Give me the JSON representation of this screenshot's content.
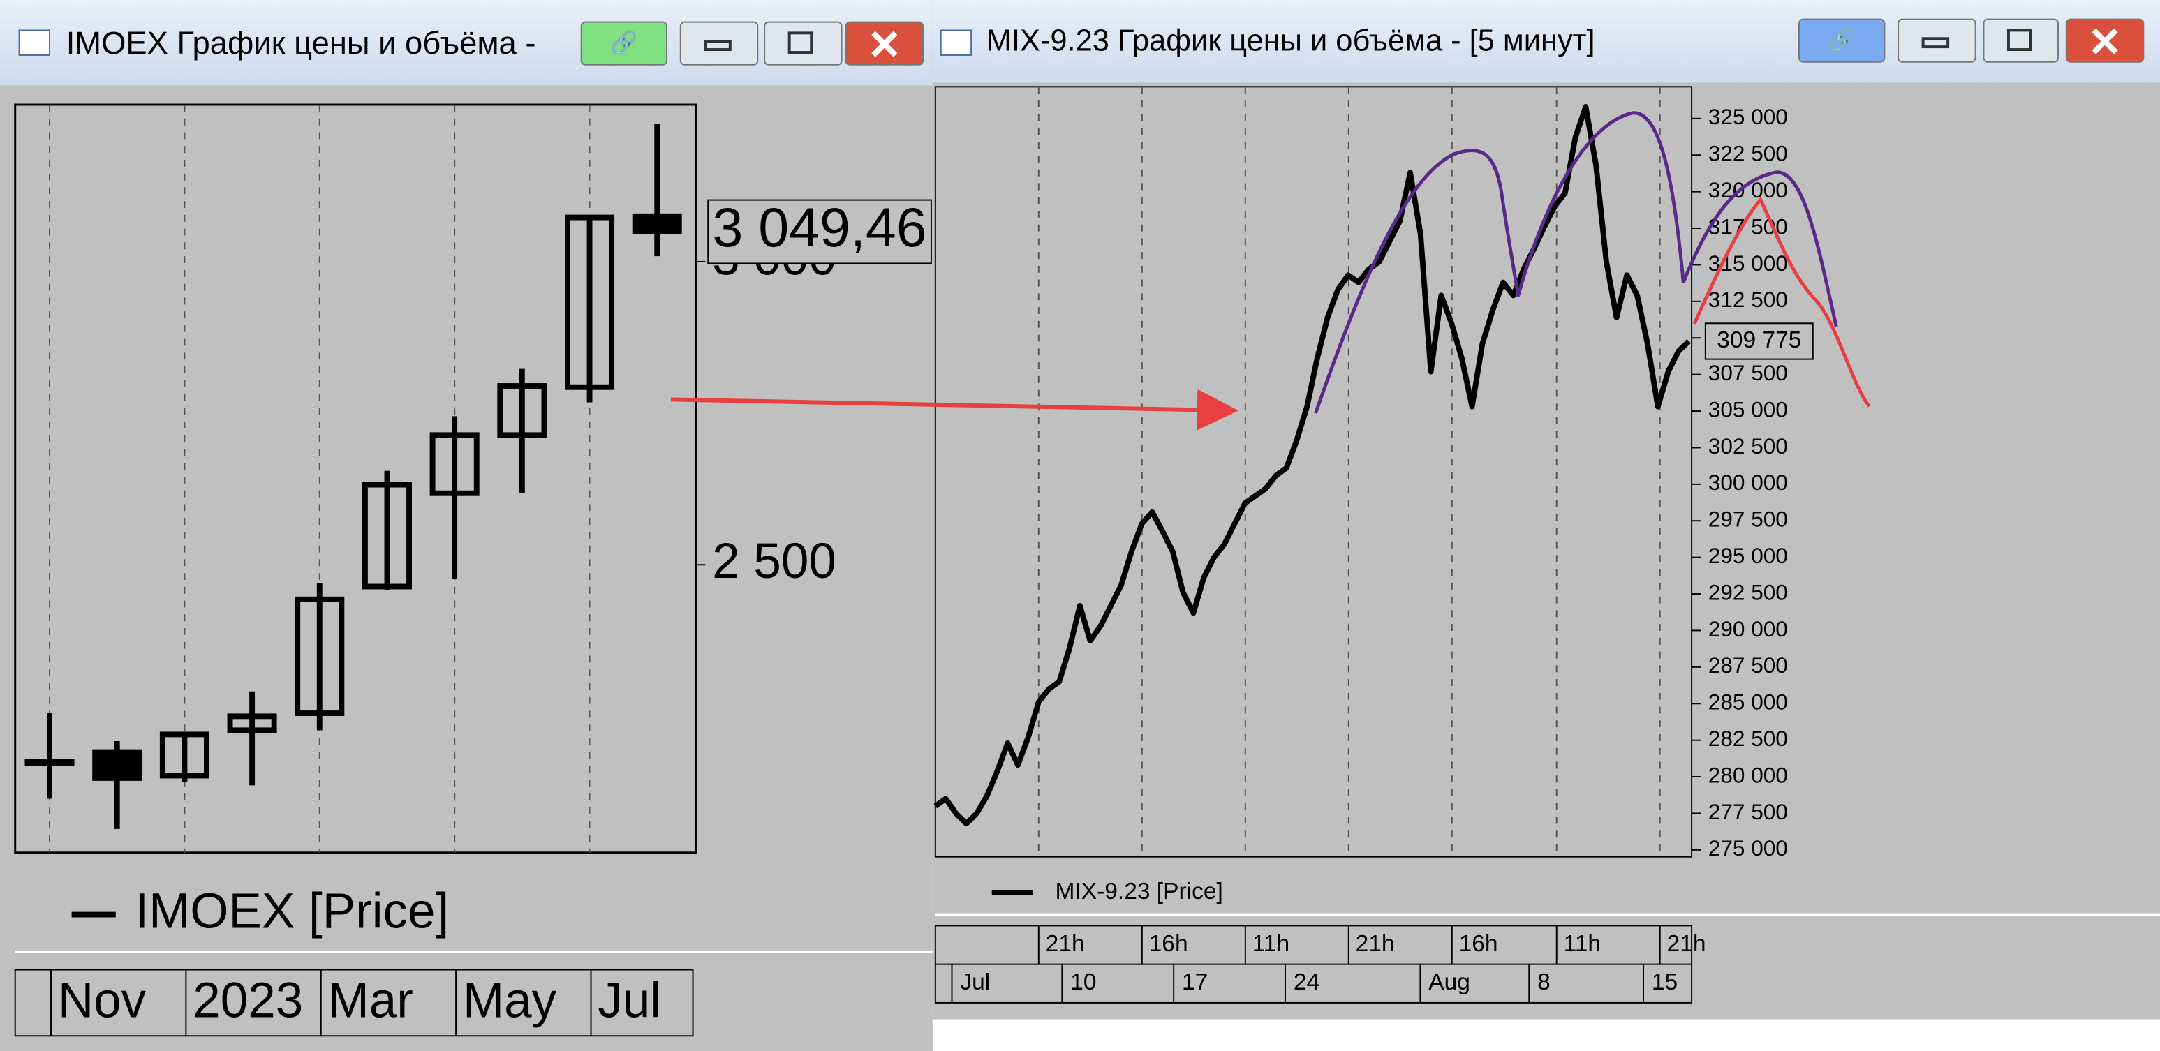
{
  "windows": [
    {
      "title": "IMOEX График цены и объёма -",
      "chart_data": {
        "type": "candlestick",
        "categories": [
          "Nov",
          null,
          "2023",
          null,
          "Mar",
          null,
          "May",
          null,
          "Jul",
          null
        ],
        "series": [
          {
            "name": "IMOEX [Price]",
            "color": "#000000",
            "open": [
              2175,
              2191,
              2152,
              2227,
              2255,
              2464,
              2618,
              2714,
              2793,
              3075
            ],
            "high": [
              2255,
              2209,
              2222,
              2291,
              2470,
              2655,
              2745,
              2823,
              3073,
              3227
            ],
            "low": [
              2114,
              2064,
              2141,
              2136,
              2227,
              2459,
              2477,
              2618,
              2768,
              3009
            ],
            "close": [
              2175,
              2148,
              2220,
              2250,
              2443,
              2632,
              2714,
              2795,
              3073,
              3049.46
            ]
          }
        ],
        "ylim": [
          2025,
          3259
        ],
        "yticks": [
          {
            "value": 2500,
            "label": "2 500"
          },
          {
            "value": 3000,
            "label": "3 000"
          }
        ],
        "last_value": 3049.46,
        "last_value_label": "3 049,46",
        "grid": true
      }
    },
    {
      "title": "MIX-9.23 График цены и объёма - [5 минут]",
      "chart_data": {
        "type": "line",
        "x_labels_time": [
          "21h",
          "16h",
          "11h",
          "21h",
          "16h",
          "11h",
          "21h"
        ],
        "x_labels_date": [
          "Jul",
          "10",
          "17",
          "24",
          "Aug",
          "8",
          "15"
        ],
        "series": [
          {
            "name": "MIX-9.23 [Price]",
            "color": "#000000",
            "values": [
              278000,
              278500,
              277500,
              276800,
              277500,
              278700,
              280400,
              282300,
              280800,
              282700,
              285100,
              286000,
              286500,
              288800,
              291700,
              289300,
              290300,
              291700,
              293100,
              295400,
              297300,
              298100,
              296800,
              295400,
              292600,
              291200,
              293600,
              295000,
              295900,
              297300,
              298700,
              299200,
              299700,
              300600,
              301100,
              303000,
              305300,
              308600,
              311400,
              313300,
              314300,
              313800,
              314700,
              315200,
              316600,
              318000,
              321300,
              317100,
              307700,
              312900,
              311000,
              308600,
              305300,
              309600,
              311900,
              313800,
              312900,
              314700,
              316100,
              317600,
              319000,
              319900,
              323700,
              325800,
              321800,
              315200,
              311400,
              314300,
              312900,
              309600,
              305300,
              307700,
              309100,
              309775
            ]
          }
        ],
        "ylim": [
          274530,
          327170
        ],
        "yticks": [
          {
            "value": 275000,
            "label": "275 000"
          },
          {
            "value": 277500,
            "label": "277 500"
          },
          {
            "value": 280000,
            "label": "280 000"
          },
          {
            "value": 282500,
            "label": "282 500"
          },
          {
            "value": 285000,
            "label": "285 000"
          },
          {
            "value": 287500,
            "label": "287 500"
          },
          {
            "value": 290000,
            "label": "290 000"
          },
          {
            "value": 292500,
            "label": "292 500"
          },
          {
            "value": 295000,
            "label": "295 000"
          },
          {
            "value": 297500,
            "label": "297 500"
          },
          {
            "value": 300000,
            "label": "300 000"
          },
          {
            "value": 302500,
            "label": "302 500"
          },
          {
            "value": 305000,
            "label": "305 000"
          },
          {
            "value": 307500,
            "label": "307 500"
          },
          {
            "value": 310000,
            "label": "310 000"
          },
          {
            "value": 312500,
            "label": "312 500"
          },
          {
            "value": 315000,
            "label": "315 000"
          },
          {
            "value": 317500,
            "label": "317 500"
          },
          {
            "value": 320000,
            "label": "320 000"
          },
          {
            "value": 322500,
            "label": "322 500"
          },
          {
            "value": 325000,
            "label": "325 000"
          }
        ],
        "last_value": 309775,
        "last_value_label": "309 775",
        "grid": true
      }
    }
  ]
}
